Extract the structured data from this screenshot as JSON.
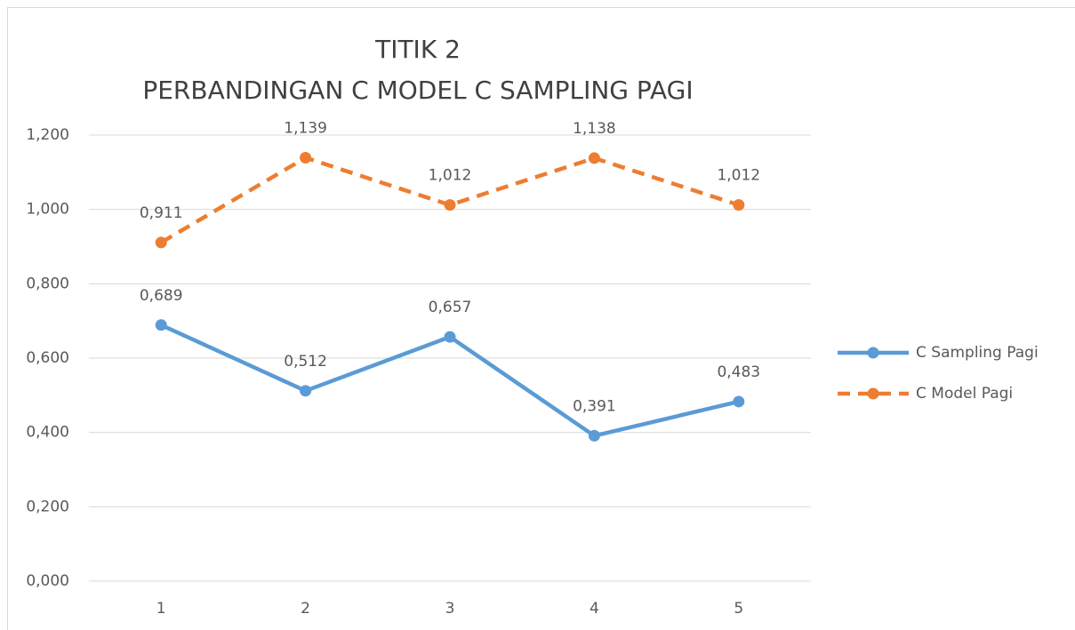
{
  "chart_data": {
    "type": "line",
    "title": [
      "TITIK 2",
      "PERBANDINGAN C MODEL C SAMPLING PAGI"
    ],
    "categories": [
      "1",
      "2",
      "3",
      "4",
      "5"
    ],
    "series": [
      {
        "name": "C Sampling Pagi",
        "color": "#5b9bd5",
        "dash": false,
        "values": [
          0.689,
          0.512,
          0.657,
          0.391,
          0.483
        ],
        "value_labels": [
          "0,689",
          "0,512",
          "0,657",
          "0,391",
          "0,483"
        ]
      },
      {
        "name": "C Model Pagi",
        "color": "#ed7d31",
        "dash": true,
        "values": [
          0.911,
          1.139,
          1.012,
          1.138,
          1.012
        ],
        "value_labels": [
          "0,911",
          "1,139",
          "1,012",
          "1,138",
          "1,012"
        ]
      }
    ],
    "ylim": [
      0,
      1.2
    ],
    "yticks": [
      {
        "value": 0,
        "label": "0,000"
      },
      {
        "value": 0.2,
        "label": "0,200"
      },
      {
        "value": 0.4,
        "label": "0,400"
      },
      {
        "value": 0.6,
        "label": "0,600"
      },
      {
        "value": 0.8,
        "label": "0,800"
      },
      {
        "value": 1.0,
        "label": "1,000"
      },
      {
        "value": 1.2,
        "label": "1,200"
      }
    ],
    "grid": true,
    "legend": "right"
  }
}
